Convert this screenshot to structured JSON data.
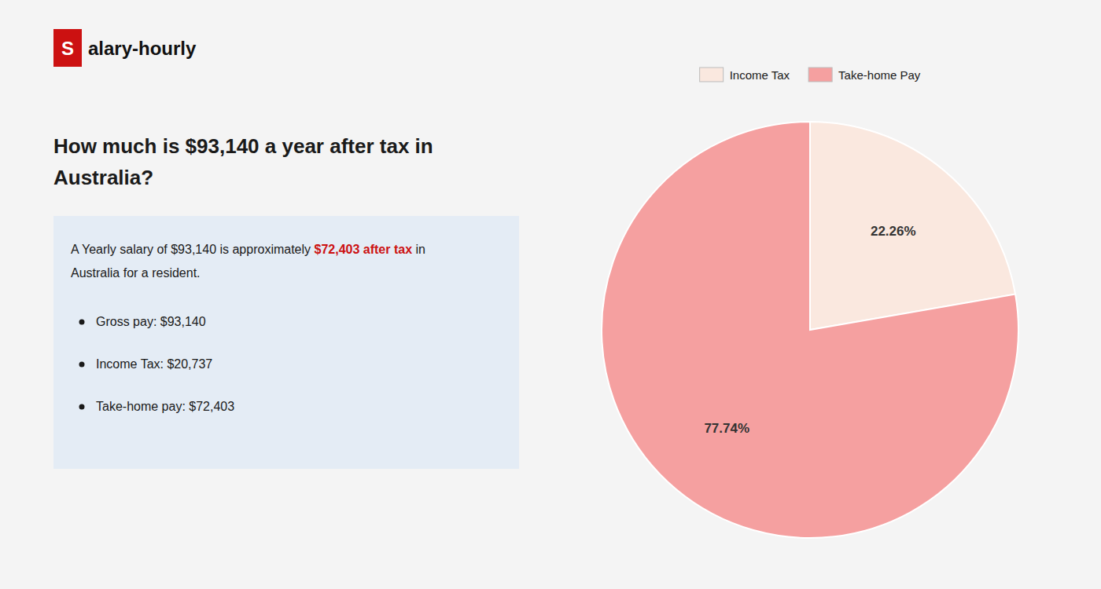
{
  "chart_data": {
    "type": "pie",
    "title": "How much is $93,140 a year after tax in Australia?",
    "annotations": [
      "S",
      "alary-hourly",
      "A Yearly salary of $93,140 is approximately ",
      "$72,403 after tax",
      " in",
      "Australia for a resident.",
      "Gross pay: $93,140",
      "Income Tax: $20,737",
      "Take-home pay: $72,403"
    ],
    "categories": [
      "Income Tax",
      "Take-home Pay"
    ],
    "values": [
      22.26,
      77.74
    ],
    "value_labels": [
      "22.26%",
      "77.74%"
    ],
    "colors": [
      "#fae8df",
      "#f5a0a0"
    ],
    "data_labels": true,
    "legend": "top"
  }
}
